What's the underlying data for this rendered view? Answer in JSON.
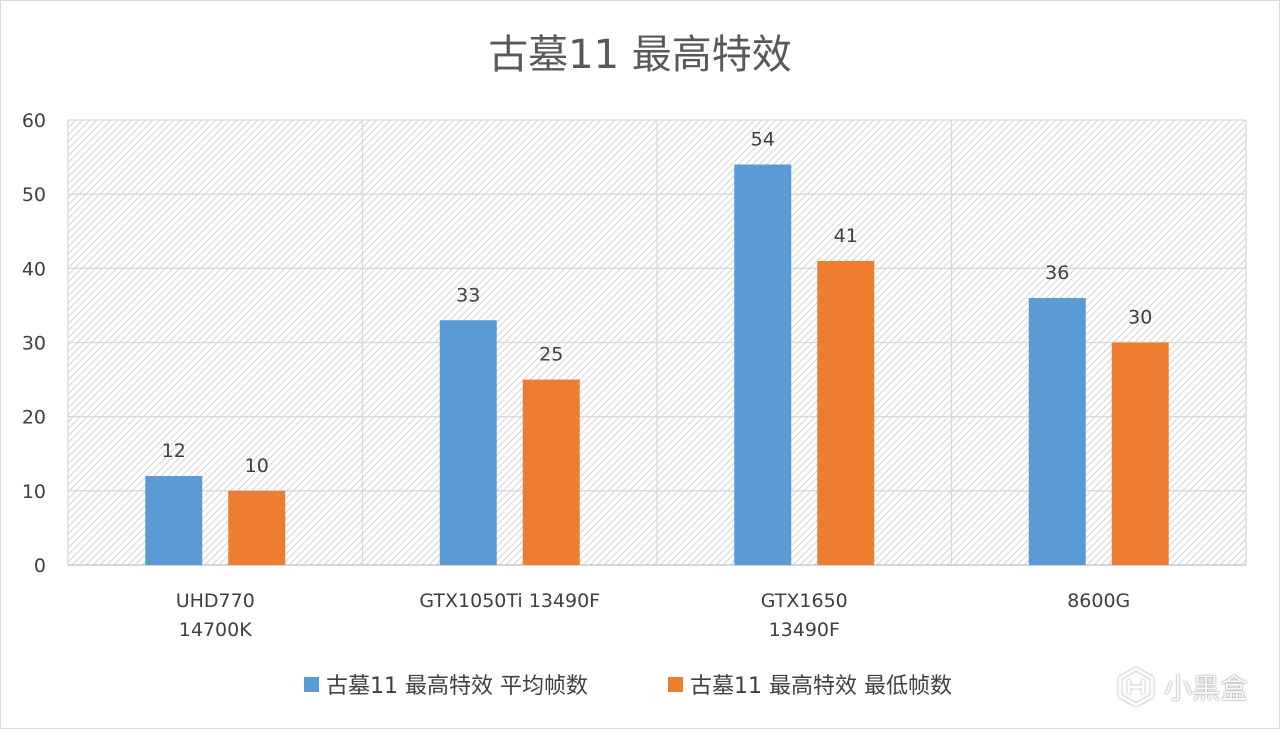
{
  "chart_data": {
    "type": "bar",
    "title": "古墓11 最高特效",
    "categories": [
      [
        "UHD770",
        "14700K"
      ],
      [
        "GTX1050Ti 13490F"
      ],
      [
        "GTX1650",
        "13490F"
      ],
      [
        "8600G"
      ]
    ],
    "series": [
      {
        "name": "古墓11 最高特效 平均帧数",
        "color": "#5b9bd5",
        "values": [
          12,
          33,
          54,
          36
        ]
      },
      {
        "name": "古墓11 最高特效 最低帧数",
        "color": "#ed7d31",
        "values": [
          10,
          25,
          41,
          30
        ]
      }
    ],
    "ylim": [
      0,
      60
    ],
    "yticks": [
      0,
      10,
      20,
      30,
      40,
      50,
      60
    ],
    "grid": true,
    "plot_background": "hatched",
    "legend_position": "bottom"
  },
  "watermark": {
    "text": "小黑盒",
    "icon": "xiaoheihe-logo-icon"
  }
}
